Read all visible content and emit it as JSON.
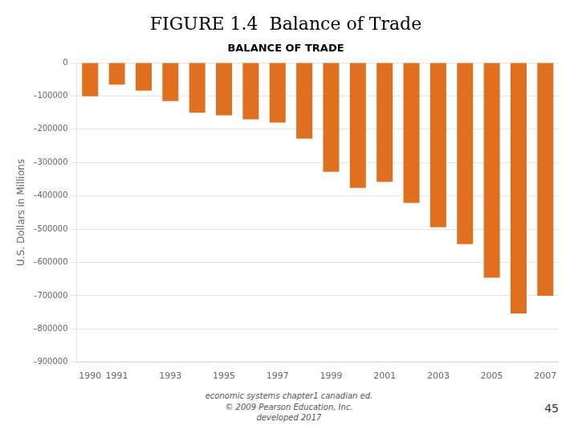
{
  "chart_data": {
    "type": "bar",
    "title": "FIGURE 1.4  Balance of Trade",
    "subtitle": "BALANCE OF TRADE",
    "y_label": "U.S. Dollars in Millions",
    "categories": [
      "1990",
      "1991",
      null,
      "1993",
      null,
      "1995",
      null,
      "1997",
      null,
      "1999",
      null,
      "2001",
      null,
      "2003",
      null,
      "2005",
      null,
      "2007"
    ],
    "values": [
      -101000,
      -66000,
      -84000,
      -115000,
      -150000,
      -158000,
      -170000,
      -180000,
      -228000,
      -328000,
      -376000,
      -358000,
      -421000,
      -494000,
      -545000,
      -646000,
      -753000,
      -700000
    ],
    "color": "#E07020",
    "ylim": [
      -900000,
      0
    ],
    "yticks": [
      0,
      {
        "value": -100000,
        "label": "–100000"
      },
      {
        "value": -200000,
        "label": "–200000"
      },
      {
        "value": -300000,
        "label": "–300000"
      },
      {
        "value": -400000,
        "label": "–400000"
      },
      {
        "value": -500000,
        "label": "–500000"
      },
      {
        "value": -600000,
        "label": "–600000"
      },
      {
        "value": -700000,
        "label": "–700000"
      },
      {
        "value": -800000,
        "label": "–800000"
      },
      {
        "value": -900000,
        "label": "–900000"
      }
    ],
    "grid": true,
    "annotations": [
      "economic systems chapter1 canadian ed.\n© 2009 Pearson Education, Inc.\ndeveloped 2017",
      "45"
    ]
  }
}
